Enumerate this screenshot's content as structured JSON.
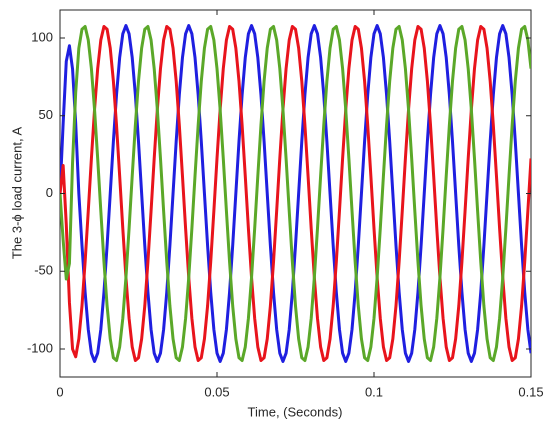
{
  "chart_data": {
    "type": "line",
    "xlabel": "Time, (Seconds)",
    "ylabel": "The 3-ϕ load current, A",
    "xlim": [
      0,
      0.15
    ],
    "xticks": [
      0,
      0.05,
      0.1,
      0.15
    ],
    "ylim": [
      -118,
      118
    ],
    "yticks": [
      -100,
      -50,
      0,
      50,
      100
    ],
    "grid": false,
    "x": [
      0,
      0.001,
      0.002,
      0.003,
      0.004,
      0.005,
      0.006,
      0.007,
      0.008,
      0.009,
      0.01,
      0.011,
      0.012,
      0.013,
      0.014,
      0.015,
      0.016,
      0.017,
      0.018,
      0.019,
      0.02,
      0.021,
      0.022,
      0.023,
      0.024,
      0.025,
      0.026,
      0.027,
      0.028,
      0.029,
      0.03,
      0.031,
      0.032,
      0.033,
      0.034,
      0.035,
      0.036,
      0.037,
      0.038,
      0.039,
      0.04,
      0.041,
      0.042,
      0.043,
      0.044,
      0.045,
      0.046,
      0.047,
      0.048,
      0.049,
      0.05,
      0.051,
      0.052,
      0.053,
      0.054,
      0.055,
      0.056,
      0.057,
      0.058,
      0.059,
      0.06,
      0.061,
      0.062,
      0.063,
      0.064,
      0.065,
      0.066,
      0.067,
      0.068,
      0.069,
      0.07,
      0.071,
      0.072,
      0.073,
      0.074,
      0.075,
      0.076,
      0.077,
      0.078,
      0.079,
      0.08,
      0.081,
      0.082,
      0.083,
      0.084,
      0.085,
      0.086,
      0.087,
      0.088,
      0.089,
      0.09,
      0.091,
      0.092,
      0.093,
      0.094,
      0.095,
      0.096,
      0.097,
      0.098,
      0.099,
      0.1,
      0.101,
      0.102,
      0.103,
      0.104,
      0.105,
      0.106,
      0.107,
      0.108,
      0.109,
      0.11,
      0.111,
      0.112,
      0.113,
      0.114,
      0.115,
      0.116,
      0.117,
      0.118,
      0.119,
      0.12,
      0.121,
      0.122,
      0.123,
      0.124,
      0.125,
      0.126,
      0.127,
      0.128,
      0.129,
      0.13,
      0.131,
      0.132,
      0.133,
      0.134,
      0.135,
      0.136,
      0.137,
      0.138,
      0.139,
      0.14,
      0.141,
      0.142,
      0.143,
      0.144,
      0.145,
      0.146,
      0.147,
      0.148,
      0.149,
      0.15
    ],
    "series": [
      {
        "color": "#1f1fe0",
        "values": [
          0,
          45,
          85,
          95,
          80,
          45,
          0,
          -33.4,
          -63.5,
          -87.4,
          -102.7,
          -108,
          -102.7,
          -87.4,
          -63.5,
          -33.4,
          0,
          33.4,
          63.5,
          87.4,
          102.7,
          108,
          102.7,
          87.4,
          63.5,
          33.4,
          0,
          -33.4,
          -63.5,
          -87.4,
          -102.7,
          -108,
          -102.7,
          -87.4,
          -63.5,
          -33.4,
          0,
          33.4,
          63.5,
          87.4,
          102.7,
          108,
          102.7,
          87.4,
          63.5,
          33.4,
          0,
          -33.4,
          -63.5,
          -87.4,
          -102.7,
          -108,
          -102.7,
          -87.4,
          -63.5,
          -33.4,
          0,
          33.4,
          63.5,
          87.4,
          102.7,
          108,
          102.7,
          87.4,
          63.5,
          33.4,
          0,
          -33.4,
          -63.5,
          -87.4,
          -102.7,
          -108,
          -102.7,
          -87.4,
          -63.5,
          -33.4,
          0,
          33.4,
          63.5,
          87.4,
          102.7,
          108,
          102.7,
          87.4,
          63.5,
          33.4,
          0,
          -33.4,
          -63.5,
          -87.4,
          -102.7,
          -108,
          -102.7,
          -87.4,
          -63.5,
          -33.4,
          0,
          33.4,
          63.5,
          87.4,
          102.7,
          108,
          102.7,
          87.4,
          63.5,
          33.4,
          0,
          -33.4,
          -63.5,
          -87.4,
          -102.7,
          -108,
          -102.7,
          -87.4,
          -63.5,
          -33.4,
          0,
          33.4,
          63.5,
          87.4,
          102.7,
          108,
          102.7,
          87.4,
          63.5,
          33.4,
          0,
          -33.4,
          -63.5,
          -87.4,
          -102.7,
          -108,
          -102.7,
          -87.4,
          -63.5,
          -33.4,
          0,
          33.4,
          63.5,
          87.4,
          102.7,
          108,
          102.7,
          87.4,
          63.5,
          33.4,
          0,
          -33.4,
          -63.5,
          -87.4,
          -102.7
        ]
      },
      {
        "color": "#e8141c",
        "values": [
          0,
          18,
          -20,
          -70,
          -100,
          -105,
          -93.5,
          -72.3,
          -43.9,
          -11.3,
          22.5,
          54,
          80.3,
          98.7,
          107.4,
          105.6,
          93.5,
          72.3,
          43.9,
          11.3,
          -22.5,
          -54,
          -80.3,
          -98.7,
          -107.4,
          -105.6,
          -93.5,
          -72.3,
          -43.9,
          -11.3,
          22.5,
          54,
          80.3,
          98.7,
          107.4,
          105.6,
          93.5,
          72.3,
          43.9,
          11.3,
          -22.5,
          -54,
          -80.3,
          -98.7,
          -107.4,
          -105.6,
          -93.5,
          -72.3,
          -43.9,
          -11.3,
          22.5,
          54,
          80.3,
          98.7,
          107.4,
          105.6,
          93.5,
          72.3,
          43.9,
          11.3,
          -22.5,
          -54,
          -80.3,
          -98.7,
          -107.4,
          -105.6,
          -93.5,
          -72.3,
          -43.9,
          -11.3,
          22.5,
          54,
          80.3,
          98.7,
          107.4,
          105.6,
          93.5,
          72.3,
          43.9,
          11.3,
          -22.5,
          -54,
          -80.3,
          -98.7,
          -107.4,
          -105.6,
          -93.5,
          -72.3,
          -43.9,
          -11.3,
          22.5,
          54,
          80.3,
          98.7,
          107.4,
          105.6,
          93.5,
          72.3,
          43.9,
          11.3,
          -22.5,
          -54,
          -80.3,
          -98.7,
          -107.4,
          -105.6,
          -93.5,
          -72.3,
          -43.9,
          -11.3,
          22.5,
          54,
          80.3,
          98.7,
          107.4,
          105.6,
          93.5,
          72.3,
          43.9,
          11.3,
          -22.5,
          -54,
          -80.3,
          -98.7,
          -107.4,
          -105.6,
          -93.5,
          -72.3,
          -43.9,
          -11.3,
          22.5,
          54,
          80.3,
          98.7,
          107.4,
          105.6,
          93.5,
          72.3,
          43.9,
          11.3,
          -22.5,
          -54,
          -80.3,
          -98.7,
          -107.4,
          -105.6,
          -93.5,
          -72.3,
          -43.9,
          -11.3,
          22.5
        ]
      },
      {
        "color": "#5ba829",
        "values": [
          0,
          -30,
          -55,
          -45,
          20,
          65,
          93.5,
          105.6,
          107.4,
          98.7,
          80.3,
          54,
          22.5,
          -11.3,
          -43.9,
          -72.3,
          -93.5,
          -105.6,
          -107.4,
          -98.7,
          -80.3,
          -54,
          -22.5,
          11.3,
          43.9,
          72.3,
          93.5,
          105.6,
          107.4,
          98.7,
          80.3,
          54,
          22.5,
          -11.3,
          -43.9,
          -72.3,
          -93.5,
          -105.6,
          -107.4,
          -98.7,
          -80.3,
          -54,
          -22.5,
          11.3,
          43.9,
          72.3,
          93.5,
          105.6,
          107.4,
          98.7,
          80.3,
          54,
          22.5,
          -11.3,
          -43.9,
          -72.3,
          -93.5,
          -105.6,
          -107.4,
          -98.7,
          -80.3,
          -54,
          -22.5,
          11.3,
          43.9,
          72.3,
          93.5,
          105.6,
          107.4,
          98.7,
          80.3,
          54,
          22.5,
          -11.3,
          -43.9,
          -72.3,
          -93.5,
          -105.6,
          -107.4,
          -98.7,
          -80.3,
          -54,
          -22.5,
          11.3,
          43.9,
          72.3,
          93.5,
          105.6,
          107.4,
          98.7,
          80.3,
          54,
          22.5,
          -11.3,
          -43.9,
          -72.3,
          -93.5,
          -105.6,
          -107.4,
          -98.7,
          -80.3,
          -54,
          -22.5,
          11.3,
          43.9,
          72.3,
          93.5,
          105.6,
          107.4,
          98.7,
          80.3,
          54,
          22.5,
          -11.3,
          -43.9,
          -72.3,
          -93.5,
          -105.6,
          -107.4,
          -98.7,
          -80.3,
          -54,
          -22.5,
          11.3,
          43.9,
          72.3,
          93.5,
          105.6,
          107.4,
          98.7,
          80.3,
          54,
          22.5,
          -11.3,
          -43.9,
          -72.3,
          -93.5,
          -105.6,
          -107.4,
          -98.7,
          -80.3,
          -54,
          -22.5,
          11.3,
          43.9,
          72.3,
          93.5,
          105.6,
          107.4,
          98.7,
          80.3
        ]
      }
    ]
  }
}
